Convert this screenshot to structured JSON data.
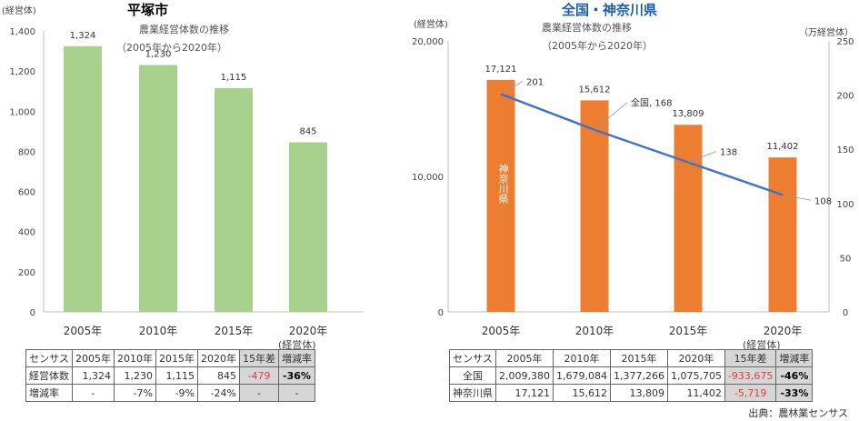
{
  "left": {
    "title": "平塚市",
    "subtitle1": "農業経営体数の推移",
    "subtitle2": "（2005年から2020年）",
    "unit": "(経営体)",
    "table_unit": "(経営体)",
    "table": {
      "headers": [
        "センサス",
        "2005年",
        "2010年",
        "2015年",
        "2020年",
        "15年差",
        "増減率"
      ],
      "rows": [
        [
          "経営体数",
          "1,324",
          "1,230",
          "1,115",
          "845",
          "-479",
          "-36%"
        ],
        [
          "増減率",
          "-",
          "-7%",
          "-9%",
          "-24%",
          "-",
          "-"
        ]
      ]
    }
  },
  "right": {
    "title": "全国・神奈川県",
    "subtitle1": "農業経営体数の推移",
    "subtitle2": "（2005年から2020年）",
    "unit_left": "(経営体)",
    "unit_right": "（万経営体）",
    "bar_vertical_label": "神奈川県",
    "table_unit": "(経営体)",
    "table": {
      "headers": [
        "センサス",
        "2005年",
        "2010年",
        "2015年",
        "2020年",
        "15年差",
        "増減率"
      ],
      "rows": [
        [
          "全国",
          "2,009,380",
          "1,679,084",
          "1,377,266",
          "1,075,705",
          "-933,675",
          "-46%"
        ],
        [
          "神奈川県",
          "17,121",
          "15,612",
          "13,809",
          "11,402",
          "-5,719",
          "-33%"
        ]
      ]
    }
  },
  "source": "出典：農林業センサス",
  "colors": {
    "green": "#a9d18e",
    "orange": "#ed7d31",
    "line": "#4472c4",
    "grid": "#d9d9d9",
    "red": "#e63b3b"
  },
  "chart_data": [
    {
      "type": "bar",
      "title": "平塚市",
      "subtitle": "農業経営体数の推移 （2005年から2020年）",
      "categories": [
        "2005年",
        "2010年",
        "2015年",
        "2020年"
      ],
      "values": [
        1324,
        1230,
        1115,
        845
      ],
      "value_labels": [
        "1,324",
        "1,230",
        "1,115",
        "845"
      ],
      "ylabel": "(経営体)",
      "ylim": [
        0,
        1400
      ],
      "yticks": [
        0,
        200,
        400,
        600,
        800,
        1000,
        1200,
        1400
      ],
      "ytick_labels": [
        "0",
        "200",
        "400",
        "600",
        "800",
        "1,000",
        "1,200",
        "1,400"
      ],
      "grid": false
    },
    {
      "type": "bar",
      "title": "全国・神奈川県",
      "subtitle": "農業経営体数の推移 （2005年から2020年）",
      "categories": [
        "2005年",
        "2010年",
        "2015年",
        "2020年"
      ],
      "series": [
        {
          "name": "神奈川県",
          "type": "bar",
          "axis": "left",
          "values": [
            17121,
            15612,
            13809,
            11402
          ],
          "value_labels": [
            "17,121",
            "15,612",
            "13,809",
            "11,402"
          ]
        },
        {
          "name": "全国",
          "type": "line",
          "axis": "right",
          "values": [
            201,
            168,
            138,
            108
          ],
          "value_labels": [
            "201",
            "全国, 168",
            "138",
            "108"
          ]
        }
      ],
      "ylabel": "(経営体)",
      "ylim": [
        0,
        20000
      ],
      "yticks": [
        0,
        10000,
        20000
      ],
      "ytick_labels": [
        "0",
        "10,000",
        "20,000"
      ],
      "y2label": "（万経営体）",
      "y2lim": [
        0,
        250
      ],
      "y2ticks": [
        0,
        50,
        100,
        150,
        200,
        250
      ],
      "grid": false
    }
  ]
}
